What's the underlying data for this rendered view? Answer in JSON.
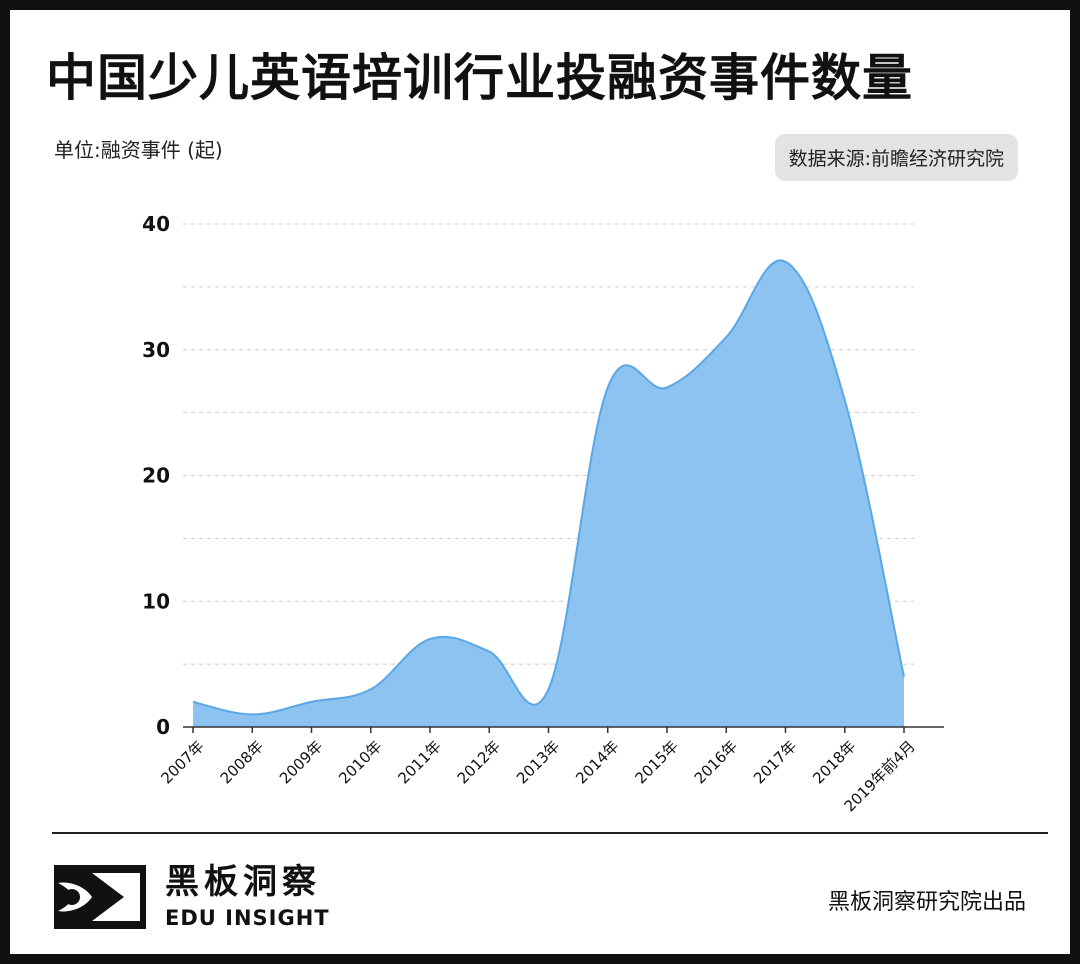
{
  "header": {
    "title": "中国少儿英语培训行业投融资事件数量",
    "unit": "单位:融资事件 (起)",
    "source": "数据来源:前瞻经济研究院"
  },
  "footer": {
    "brand_cn": "黑板洞察",
    "brand_en": "EDU INSIGHT",
    "credit": "黑板洞察研究院出品"
  },
  "colors": {
    "area_fill": "#8dc3f0",
    "area_stroke": "#5aa7e6",
    "grid": "#cccccc",
    "text": "#111111"
  },
  "chart_data": {
    "type": "area",
    "title": "中国少儿英语培训行业投融资事件数量",
    "xlabel": "",
    "ylabel": "单位:融资事件 (起)",
    "categories": [
      "2007年",
      "2008年",
      "2009年",
      "2010年",
      "2011年",
      "2012年",
      "2013年",
      "2014年",
      "2015年",
      "2016年",
      "2017年",
      "2018年",
      "2019年前4月"
    ],
    "values": [
      2,
      1,
      2,
      3,
      7,
      6,
      3,
      27,
      27,
      31,
      37,
      26,
      4
    ],
    "ylim": [
      0,
      40
    ],
    "yticks": [
      0,
      10,
      20,
      30,
      40
    ],
    "grid": true,
    "legend": "none"
  }
}
